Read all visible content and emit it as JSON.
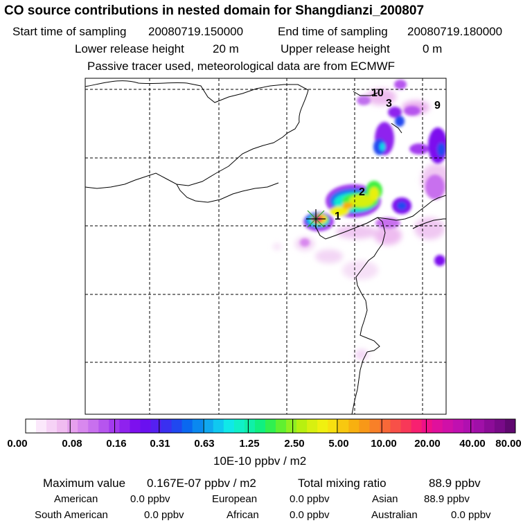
{
  "title": "CO  source contributions in nested domain for Shangdianzi_200807",
  "sampling": {
    "start_label": "Start time of sampling",
    "start_value": "20080719.150000",
    "end_label": "End time of sampling",
    "end_value": "20080719.180000"
  },
  "release": {
    "lower_label": "Lower release height",
    "lower_value": "20 m",
    "upper_label": "Upper release height",
    "upper_value": "0 m"
  },
  "note": "Passive tracer used, meteorological data are from ECMWF",
  "map": {
    "receptor_marker": "star-marker",
    "source_labels": [
      "1",
      "2",
      "3",
      "9",
      "10"
    ]
  },
  "colorbar": {
    "tick_labels": [
      "0.00",
      "0.08",
      "0.16",
      "0.31",
      "0.63",
      "1.25",
      "2.50",
      "5.00",
      "10.00",
      "20.00",
      "40.00",
      "80.00"
    ],
    "colors": [
      "#ffffff",
      "#fbe8fb",
      "#f6d2f6",
      "#f0bcf0",
      "#e6a0ee",
      "#d888ee",
      "#c870ee",
      "#b655ee",
      "#a33aee",
      "#8f22ee",
      "#7d10ee",
      "#6a10f0",
      "#5520f0",
      "#3a30f0",
      "#2048f0",
      "#0a68f0",
      "#0a88f0",
      "#10a8f0",
      "#10c8f0",
      "#10e8e8",
      "#10f0c8",
      "#10f0a8",
      "#10f080",
      "#30f050",
      "#60f030",
      "#90f020",
      "#b8f010",
      "#d8f010",
      "#f0f010",
      "#f8e010",
      "#f8c810",
      "#f8b010",
      "#f89818",
      "#f88028",
      "#f86838",
      "#f85048",
      "#f83858",
      "#f82070",
      "#f01088",
      "#e0109c",
      "#d010a8",
      "#c010b0",
      "#b010b0",
      "#a010a8",
      "#8c0c98",
      "#780a88",
      "#600870"
    ],
    "unit": "10E-10 ppbv / m2"
  },
  "stats": {
    "max_label": "Maximum value",
    "max_value": "0.167E-07 ppbv / m2",
    "total_label": "Total mixing ratio",
    "total_value": "88.9 ppbv",
    "regions": [
      {
        "name": "American",
        "value": "0.0 ppbv"
      },
      {
        "name": "European",
        "value": "0.0 ppbv"
      },
      {
        "name": "Asian",
        "value": "88.9 ppbv"
      },
      {
        "name": "South American",
        "value": "0.0 ppbv"
      },
      {
        "name": "African",
        "value": "0.0 ppbv"
      },
      {
        "name": "Australian",
        "value": "0.0 ppbv"
      }
    ]
  }
}
